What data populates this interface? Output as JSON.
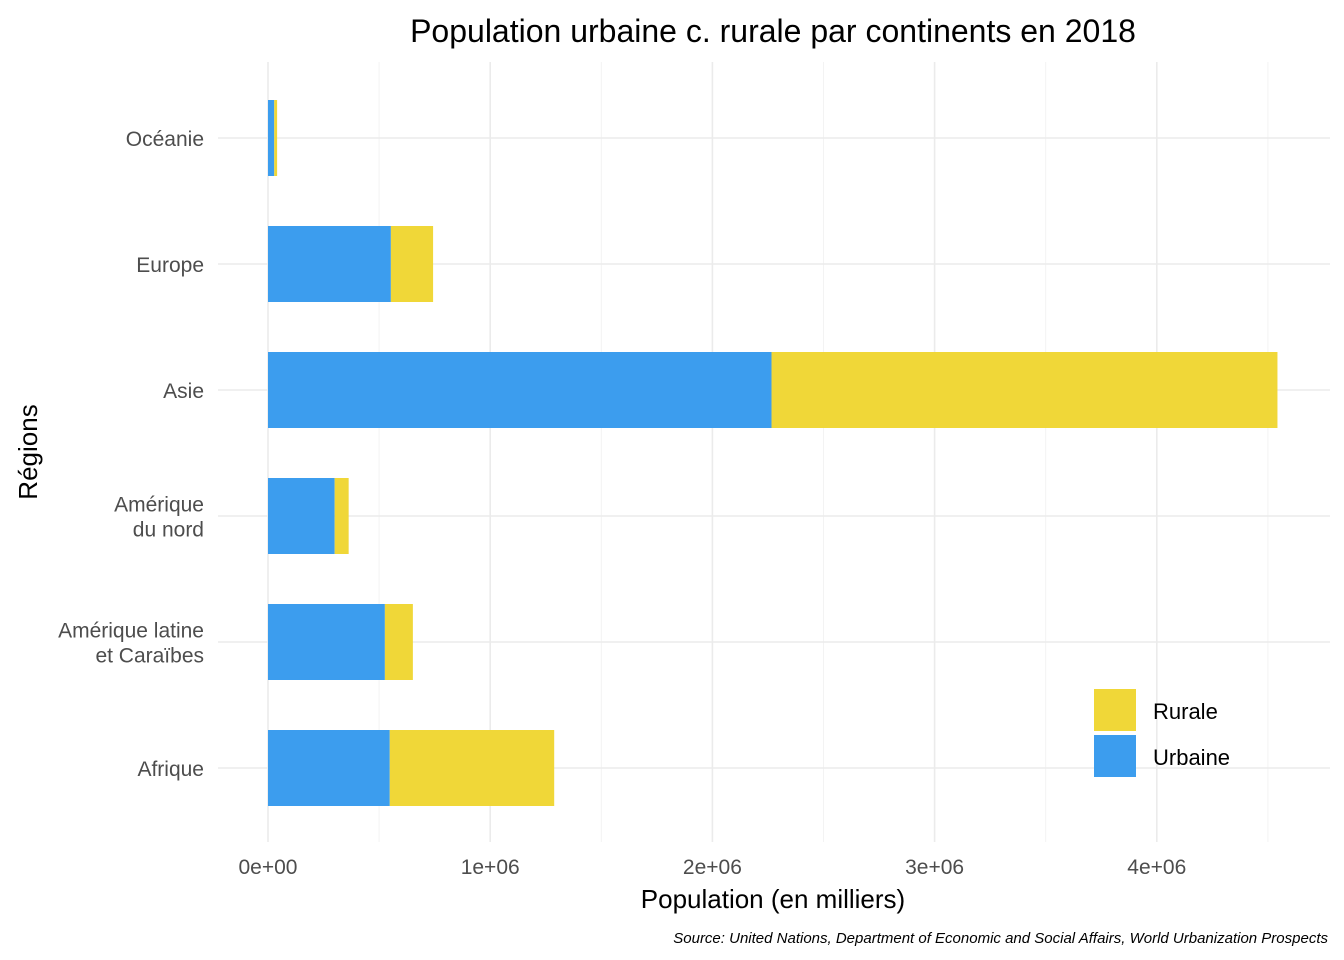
{
  "chart_data": {
    "type": "bar",
    "orientation": "horizontal",
    "stacked": true,
    "title": "Population urbaine c. rurale par continents en 2018",
    "xlabel": "Population (en milliers)",
    "ylabel": "Régions",
    "caption": "Source: United Nations, Department of Economic and Social Affairs, World Urbanization Prospects",
    "categories": [
      "Afrique",
      "Amérique latine\net Caraïbes",
      "Amérique\ndu nord",
      "Asie",
      "Europe",
      "Océanie"
    ],
    "series": [
      {
        "name": "Urbaine",
        "color": "#3C9DEE",
        "values": [
          548000,
          526000,
          300000,
          2266000,
          553000,
          28000
        ]
      },
      {
        "name": "Rurale",
        "color": "#F0D738",
        "values": [
          740000,
          126000,
          63000,
          2277000,
          190000,
          13000
        ]
      }
    ],
    "xlim": [
      0,
      4550000
    ],
    "xticks": [
      0,
      1000000,
      2000000,
      3000000,
      4000000
    ],
    "xtick_labels": [
      "0e+00",
      "1e+06",
      "2e+06",
      "3e+06",
      "4e+06"
    ],
    "legend": {
      "position": "bottom-right",
      "items": [
        {
          "label": "Rurale",
          "color": "#F0D738"
        },
        {
          "label": "Urbaine",
          "color": "#3C9DEE"
        }
      ]
    },
    "grid": true
  }
}
